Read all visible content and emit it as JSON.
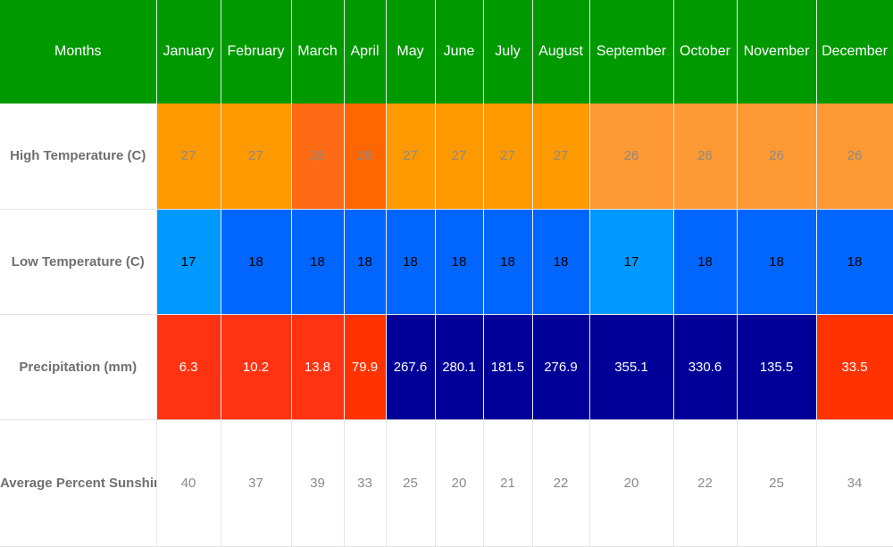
{
  "header": {
    "label": "Months"
  },
  "months": [
    "January",
    "February",
    "March",
    "April",
    "May",
    "June",
    "July",
    "August",
    "September",
    "October",
    "November",
    "December"
  ],
  "rows": [
    {
      "key": "high",
      "label": "High Temperature (C)",
      "values": [
        "27",
        "27",
        "28",
        "28",
        "27",
        "27",
        "27",
        "27",
        "26",
        "26",
        "26",
        "26"
      ],
      "colors": [
        "#ff9900",
        "#ff9900",
        "#ff6a14",
        "#ff6600",
        "#ff9900",
        "#ff9900",
        "#ff9900",
        "#ff9900",
        "#ff9933",
        "#ff9933",
        "#ff9933",
        "#ff9933"
      ]
    },
    {
      "key": "low",
      "label": "Low Temperature (C)",
      "values": [
        "17",
        "18",
        "18",
        "18",
        "18",
        "18",
        "18",
        "18",
        "17",
        "18",
        "18",
        "18"
      ],
      "colors": [
        "#0099ff",
        "#0066ff",
        "#0066ff",
        "#0066ff",
        "#0066ff",
        "#0066ff",
        "#0066ff",
        "#0066ff",
        "#0099ff",
        "#0066ff",
        "#0066ff",
        "#0066ff"
      ]
    },
    {
      "key": "precipitation",
      "label": "Precipitation (mm)",
      "values": [
        "6.3",
        "10.2",
        "13.8",
        "79.9",
        "267.6",
        "280.1",
        "181.5",
        "276.9",
        "355.1",
        "330.6",
        "135.5",
        "33.5"
      ],
      "colors": [
        "#ff3311",
        "#ff3311",
        "#ff3311",
        "#ff3300",
        "#000099",
        "#000099",
        "#000099",
        "#000099",
        "#000099",
        "#000099",
        "#000099",
        "#ff3300"
      ]
    },
    {
      "key": "sunshine",
      "label": "Average Percent Sunshine",
      "values": [
        "40",
        "37",
        "39",
        "33",
        "25",
        "20",
        "21",
        "22",
        "20",
        "22",
        "25",
        "34"
      ],
      "colors": []
    }
  ],
  "chart_data": {
    "type": "table",
    "columns": [
      "Months",
      "January",
      "February",
      "March",
      "April",
      "May",
      "June",
      "July",
      "August",
      "September",
      "October",
      "November",
      "December"
    ],
    "series": [
      {
        "name": "High Temperature (C)",
        "values": [
          27,
          27,
          28,
          28,
          27,
          27,
          27,
          27,
          26,
          26,
          26,
          26
        ]
      },
      {
        "name": "Low Temperature (C)",
        "values": [
          17,
          18,
          18,
          18,
          18,
          18,
          18,
          18,
          17,
          18,
          18,
          18
        ]
      },
      {
        "name": "Precipitation (mm)",
        "values": [
          6.3,
          10.2,
          13.8,
          79.9,
          267.6,
          280.1,
          181.5,
          276.9,
          355.1,
          330.6,
          135.5,
          33.5
        ]
      },
      {
        "name": "Average Percent Sunshine",
        "values": [
          40,
          37,
          39,
          33,
          25,
          20,
          21,
          22,
          20,
          22,
          25,
          34
        ]
      }
    ]
  }
}
